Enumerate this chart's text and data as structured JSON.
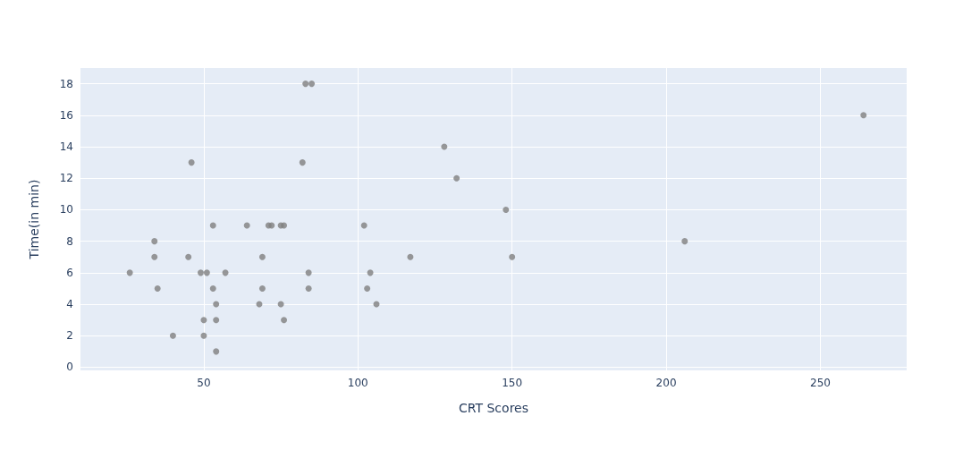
{
  "chart_data": {
    "type": "scatter",
    "xlabel": "CRT Scores",
    "ylabel": "Time(in min)",
    "x": [
      26,
      34,
      34,
      35,
      40,
      45,
      46,
      49,
      51,
      50,
      50,
      53,
      53,
      54,
      54,
      54,
      57,
      64,
      68,
      69,
      69,
      71,
      72,
      75,
      75,
      76,
      76,
      82,
      83,
      85,
      84,
      84,
      102,
      104,
      103,
      106,
      117,
      128,
      132,
      148,
      150,
      206,
      264
    ],
    "series": [
      {
        "color": "#808080",
        "values": [
          6,
          8,
          7,
          5,
          2,
          7,
          13,
          6,
          6,
          3,
          2,
          9,
          5,
          4,
          3,
          1,
          6,
          9,
          4,
          7,
          5,
          9,
          9,
          9,
          4,
          9,
          3,
          13,
          18,
          18,
          6,
          5,
          9,
          6,
          5,
          4,
          7,
          14,
          12,
          10,
          7,
          8,
          16
        ]
      }
    ],
    "xlim": [
      10,
      278
    ],
    "xticks": [
      50,
      100,
      150,
      200,
      250
    ],
    "ylim": [
      -0.2,
      19
    ],
    "yticks": [
      0,
      2,
      4,
      6,
      8,
      10,
      12,
      14,
      16,
      18
    ],
    "grid": true,
    "marker": "circle"
  }
}
